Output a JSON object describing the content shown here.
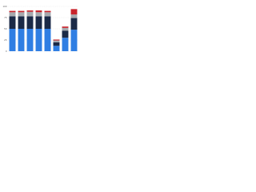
{
  "chart_data": {
    "type": "stacked-bar",
    "categories": [
      null,
      null,
      null,
      null,
      null,
      null,
      null,
      null
    ],
    "series": [
      {
        "color": "#2f7ee3",
        "values": [
          50,
          50,
          50,
          50,
          50,
          12,
          30,
          48
        ]
      },
      {
        "color": "#1b2a47",
        "values": [
          28,
          28,
          28,
          28,
          28,
          8,
          16,
          26
        ]
      },
      {
        "color": "#a5a9ae",
        "values": [
          9,
          9,
          10,
          9,
          9,
          4,
          6,
          8
        ]
      },
      {
        "color": "#c8232b",
        "values": [
          3,
          3,
          3,
          4,
          3,
          2,
          3,
          12
        ]
      }
    ],
    "ylim": [
      0,
      100
    ],
    "yticks": [
      0,
      25,
      50,
      75,
      100
    ],
    "grid": true
  }
}
